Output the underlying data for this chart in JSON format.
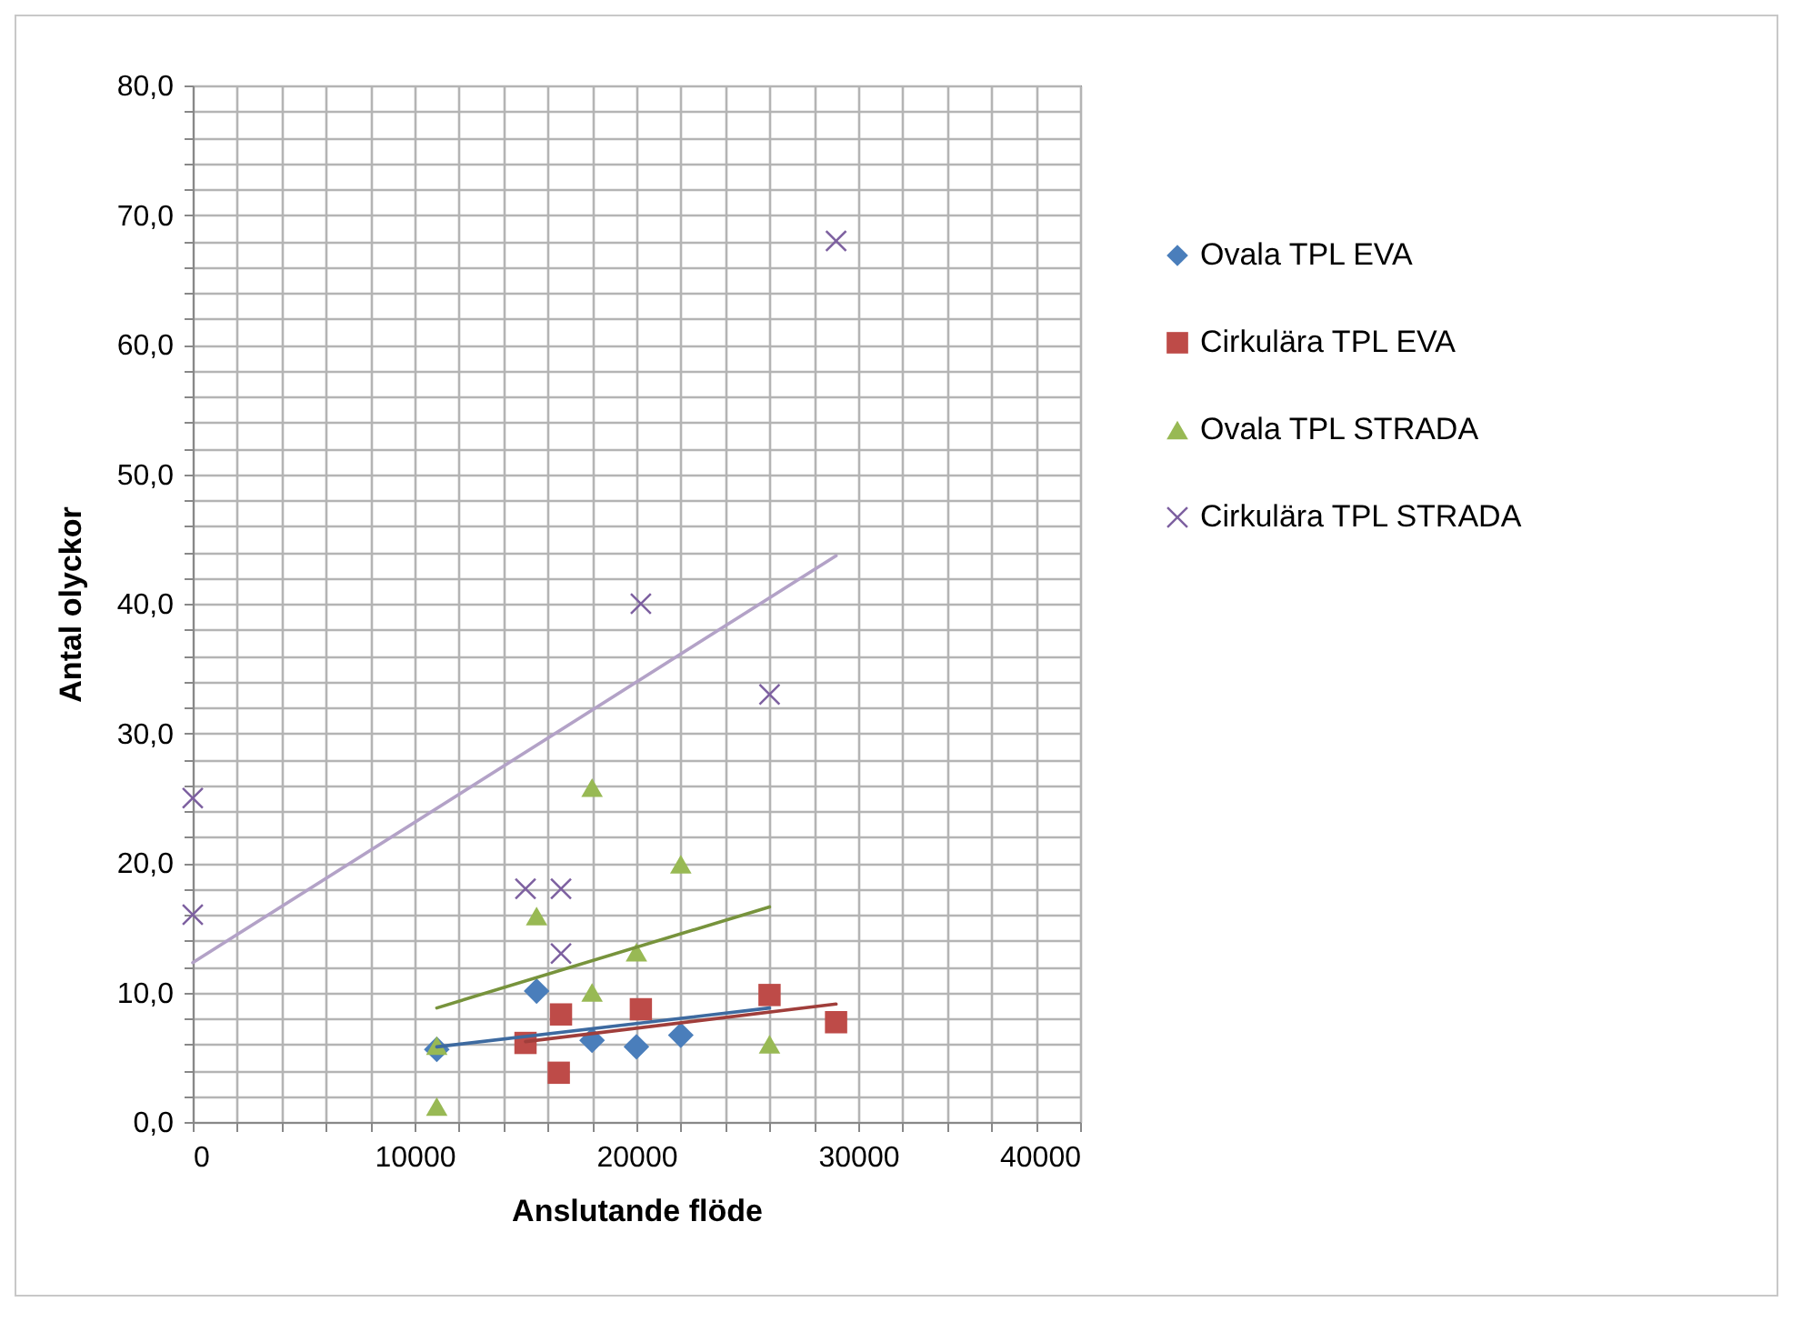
{
  "chart_data": {
    "type": "scatter",
    "xlabel": "Anslutande flöde",
    "ylabel": "Antal olyckor",
    "xlim": [
      0,
      40000
    ],
    "ylim": [
      0,
      80
    ],
    "xticks": [
      0,
      {
        "value": 2000,
        "label": null
      },
      {
        "value": 4000,
        "label": null
      },
      {
        "value": 6000,
        "label": null
      },
      {
        "value": 8000,
        "label": null
      },
      10000,
      {
        "value": 12000,
        "label": null
      },
      {
        "value": 14000,
        "label": null
      },
      {
        "value": 16000,
        "label": null
      },
      {
        "value": 18000,
        "label": null
      },
      20000,
      {
        "value": 22000,
        "label": null
      },
      {
        "value": 24000,
        "label": null
      },
      {
        "value": 26000,
        "label": null
      },
      {
        "value": 28000,
        "label": null
      },
      30000,
      {
        "value": 32000,
        "label": null
      },
      {
        "value": 34000,
        "label": null
      },
      {
        "value": 36000,
        "label": null
      },
      {
        "value": 38000,
        "label": null
      },
      40000
    ],
    "yticks": [
      {
        "value": 0,
        "label": "0,0"
      },
      {
        "value": 2,
        "label": null
      },
      {
        "value": 4,
        "label": null
      },
      {
        "value": 6,
        "label": null
      },
      {
        "value": 8,
        "label": null
      },
      {
        "value": 10,
        "label": "10,0"
      },
      {
        "value": 12,
        "label": null
      },
      {
        "value": 14,
        "label": null
      },
      {
        "value": 16,
        "label": null
      },
      {
        "value": 18,
        "label": null
      },
      {
        "value": 20,
        "label": "20,0"
      },
      {
        "value": 22,
        "label": null
      },
      {
        "value": 24,
        "label": null
      },
      {
        "value": 26,
        "label": null
      },
      {
        "value": 28,
        "label": null
      },
      {
        "value": 30,
        "label": "30,0"
      },
      {
        "value": 32,
        "label": null
      },
      {
        "value": 34,
        "label": null
      },
      {
        "value": 36,
        "label": null
      },
      {
        "value": 38,
        "label": null
      },
      {
        "value": 40,
        "label": "40,0"
      },
      {
        "value": 42,
        "label": null
      },
      {
        "value": 44,
        "label": null
      },
      {
        "value": 46,
        "label": null
      },
      {
        "value": 48,
        "label": null
      },
      {
        "value": 50,
        "label": "50,0"
      },
      {
        "value": 52,
        "label": null
      },
      {
        "value": 54,
        "label": null
      },
      {
        "value": 56,
        "label": null
      },
      {
        "value": 58,
        "label": null
      },
      {
        "value": 60,
        "label": "60,0"
      },
      {
        "value": 62,
        "label": null
      },
      {
        "value": 64,
        "label": null
      },
      {
        "value": 66,
        "label": null
      },
      {
        "value": 68,
        "label": null
      },
      {
        "value": 70,
        "label": "70,0"
      },
      {
        "value": 72,
        "label": null
      },
      {
        "value": 74,
        "label": null
      },
      {
        "value": 76,
        "label": null
      },
      {
        "value": 78,
        "label": null
      },
      {
        "value": 80,
        "label": "80,0"
      }
    ],
    "grid": true,
    "legend": "right",
    "series": [
      {
        "name": "Ovala TPL EVA",
        "color": "#4a7ebb",
        "marker": "diamond",
        "x": [
          11000,
          15500,
          18000,
          20000,
          22000
        ],
        "values": [
          5.6,
          10.1,
          6.3,
          5.8,
          6.7
        ]
      },
      {
        "name": "Cirkulära TPL EVA",
        "color": "#be4b48",
        "marker": "square",
        "x": [
          15000,
          16600,
          16500,
          20200,
          26000,
          29000
        ],
        "values": [
          6.1,
          8.3,
          3.8,
          8.7,
          9.8,
          7.7
        ]
      },
      {
        "name": "Ovala TPL STRADA",
        "color": "#98b954",
        "marker": "triangle",
        "x": [
          11000,
          11000,
          15500,
          18000,
          18000,
          20000,
          22000,
          26000
        ],
        "values": [
          1.2,
          5.9,
          15.9,
          25.8,
          10.0,
          13.1,
          19.9,
          6.0
        ]
      },
      {
        "name": "Cirkulära TPL STRADA",
        "color": "#7d60a0",
        "marker": "cross",
        "x": [
          0,
          0,
          15000,
          16600,
          16600,
          20200,
          26000,
          29000
        ],
        "values": [
          25.0,
          16.0,
          18.0,
          18.0,
          13.0,
          40.0,
          33.0,
          68.0
        ]
      },
      {
        "type": "line",
        "color": "#3d6aa0",
        "x": [
          11000,
          26000
        ],
        "values": [
          5.8,
          8.8
        ]
      },
      {
        "type": "line",
        "color": "#a03e3b",
        "x": [
          15000,
          29000
        ],
        "values": [
          6.2,
          9.1
        ]
      },
      {
        "type": "line",
        "color": "#77933c",
        "x": [
          11000,
          26000
        ],
        "values": [
          8.8,
          16.6
        ]
      },
      {
        "type": "line",
        "color": "#b3a2c7",
        "x": [
          0,
          29000
        ],
        "values": [
          12.3,
          43.7
        ]
      }
    ]
  }
}
